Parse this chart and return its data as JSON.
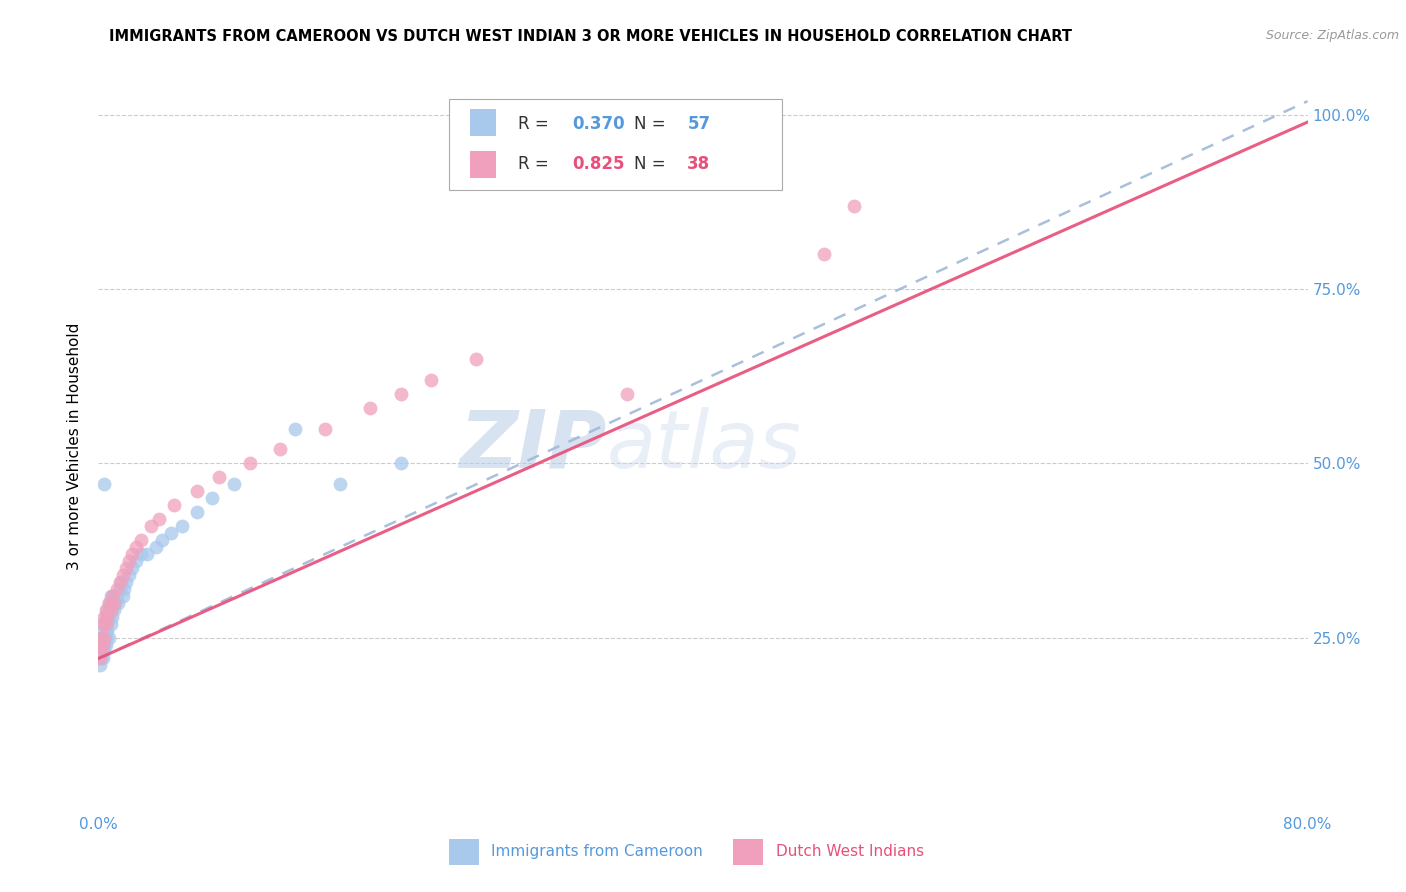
{
  "title": "IMMIGRANTS FROM CAMEROON VS DUTCH WEST INDIAN 3 OR MORE VEHICLES IN HOUSEHOLD CORRELATION CHART",
  "source": "Source: ZipAtlas.com",
  "ylabel": "3 or more Vehicles in Household",
  "xlim": [
    0.0,
    0.8
  ],
  "ylim": [
    0.0,
    1.05
  ],
  "color_blue": "#A8C8EC",
  "color_pink": "#F0A0BC",
  "color_blue_line": "#A0B8D8",
  "color_pink_line": "#E8507A",
  "color_blue_text": "#5599DD",
  "color_pink_text": "#E8507A",
  "r_blue": "0.370",
  "n_blue": "57",
  "r_pink": "0.825",
  "n_pink": "38",
  "watermark_zip": "ZIP",
  "watermark_atlas": "atlas",
  "legend_label_blue": "Immigrants from Cameroon",
  "legend_label_pink": "Dutch West Indians",
  "blue_line_x0": 0.0,
  "blue_line_x1": 0.8,
  "blue_line_y0": 0.22,
  "blue_line_y1": 1.02,
  "pink_line_x0": 0.0,
  "pink_line_x1": 0.8,
  "pink_line_y0": 0.22,
  "pink_line_y1": 0.99,
  "blue_scatter_x": [
    0.001,
    0.001,
    0.001,
    0.002,
    0.002,
    0.002,
    0.002,
    0.003,
    0.003,
    0.003,
    0.003,
    0.003,
    0.004,
    0.004,
    0.004,
    0.004,
    0.005,
    0.005,
    0.005,
    0.005,
    0.006,
    0.006,
    0.006,
    0.007,
    0.007,
    0.007,
    0.008,
    0.008,
    0.008,
    0.009,
    0.009,
    0.01,
    0.01,
    0.011,
    0.012,
    0.013,
    0.014,
    0.015,
    0.016,
    0.017,
    0.018,
    0.02,
    0.022,
    0.025,
    0.028,
    0.032,
    0.038,
    0.042,
    0.048,
    0.055,
    0.065,
    0.075,
    0.09,
    0.13,
    0.16,
    0.2,
    0.004
  ],
  "blue_scatter_y": [
    0.21,
    0.22,
    0.23,
    0.22,
    0.24,
    0.25,
    0.23,
    0.22,
    0.24,
    0.25,
    0.26,
    0.23,
    0.24,
    0.25,
    0.27,
    0.23,
    0.25,
    0.26,
    0.28,
    0.24,
    0.26,
    0.27,
    0.29,
    0.25,
    0.28,
    0.3,
    0.27,
    0.29,
    0.31,
    0.28,
    0.3,
    0.29,
    0.31,
    0.3,
    0.31,
    0.3,
    0.32,
    0.33,
    0.31,
    0.32,
    0.33,
    0.34,
    0.35,
    0.36,
    0.37,
    0.37,
    0.38,
    0.39,
    0.4,
    0.41,
    0.43,
    0.45,
    0.47,
    0.55,
    0.47,
    0.5,
    0.47
  ],
  "pink_scatter_x": [
    0.001,
    0.001,
    0.002,
    0.002,
    0.003,
    0.003,
    0.004,
    0.004,
    0.005,
    0.005,
    0.006,
    0.007,
    0.008,
    0.009,
    0.01,
    0.012,
    0.014,
    0.016,
    0.018,
    0.02,
    0.022,
    0.025,
    0.028,
    0.035,
    0.04,
    0.05,
    0.065,
    0.08,
    0.1,
    0.12,
    0.15,
    0.18,
    0.2,
    0.22,
    0.25,
    0.35,
    0.48,
    0.5
  ],
  "pink_scatter_y": [
    0.22,
    0.24,
    0.23,
    0.25,
    0.24,
    0.27,
    0.25,
    0.28,
    0.27,
    0.29,
    0.28,
    0.3,
    0.29,
    0.31,
    0.3,
    0.32,
    0.33,
    0.34,
    0.35,
    0.36,
    0.37,
    0.38,
    0.39,
    0.41,
    0.42,
    0.44,
    0.46,
    0.48,
    0.5,
    0.52,
    0.55,
    0.58,
    0.6,
    0.62,
    0.65,
    0.6,
    0.8,
    0.87
  ]
}
